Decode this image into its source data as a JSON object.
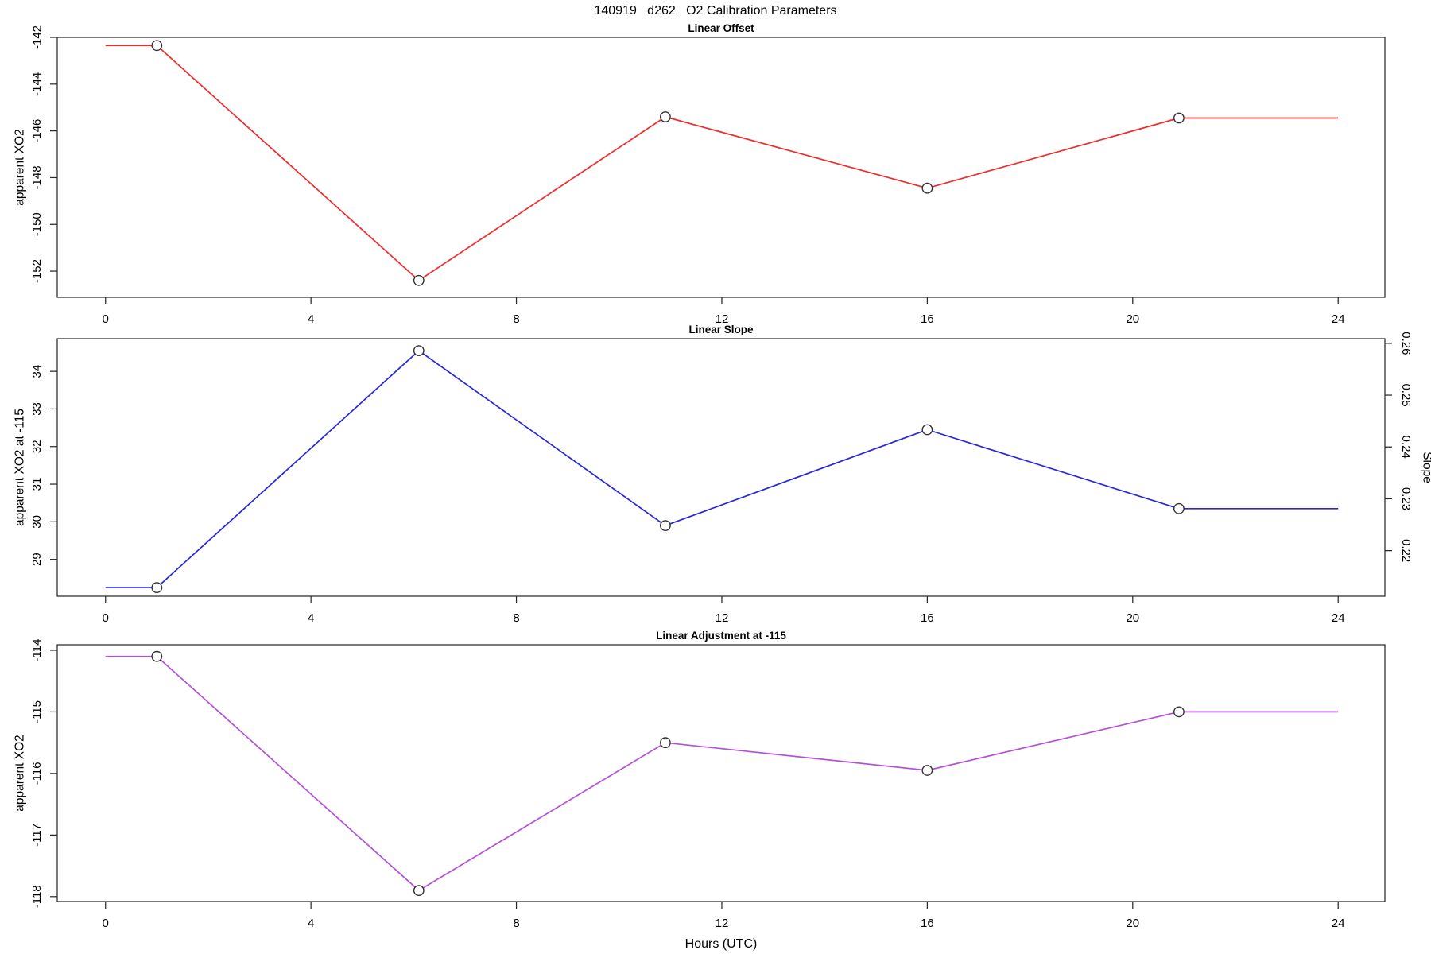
{
  "page": {
    "title": "140919   d262   O2 Calibration Parameters",
    "background": "#ffffff",
    "text_color": "#000000"
  },
  "x_axis": {
    "label": "Hours (UTC)",
    "tick_values": [
      0,
      4,
      8,
      12,
      16,
      20,
      24
    ],
    "tick_labels": [
      "0",
      "4",
      "8",
      "12",
      "16",
      "20",
      "24"
    ],
    "xlim": [
      -0.94,
      24.91
    ]
  },
  "chart_data": [
    {
      "type": "line",
      "title": "Linear Offset",
      "ylabel": "apparent XO2",
      "grid": false,
      "legend": null,
      "ytick_values": [
        -142,
        -144,
        -146,
        -148,
        -150,
        -152
      ],
      "ytick_labels": [
        "-142",
        "-144",
        "-146",
        "-148",
        "-150",
        "-152"
      ],
      "ylim": [
        -153.12,
        -142.0
      ],
      "series": [
        {
          "name": "linear_offset",
          "color": "#ee2c2c",
          "x": [
            0,
            1,
            6.1,
            10.9,
            16,
            20.9,
            24
          ],
          "y": [
            -142.35,
            -142.35,
            -152.4,
            -145.4,
            -148.45,
            -145.45,
            -145.45
          ],
          "marker_indices": [
            1,
            2,
            3,
            4,
            5
          ]
        }
      ]
    },
    {
      "type": "line",
      "title": "Linear Slope",
      "ylabel": "apparent XO2 at -115",
      "grid": false,
      "legend": null,
      "ytick_values": [
        29,
        30,
        31,
        32,
        33,
        34
      ],
      "ytick_labels": [
        "29",
        "30",
        "31",
        "32",
        "33",
        "34"
      ],
      "ylim": [
        28.02,
        34.87
      ],
      "right_axis": {
        "label": "Slope",
        "tick_values": [
          0.22,
          0.23,
          0.24,
          0.25,
          0.26
        ],
        "tick_labels": [
          "0.22",
          "0.23",
          "0.24",
          "0.25",
          "0.26"
        ],
        "ylim": [
          0.2112,
          0.2609
        ],
        "series_values": [
          0.213,
          0.213,
          0.259,
          0.2245,
          0.2435,
          0.228,
          0.228
        ]
      },
      "series": [
        {
          "name": "linear_slope",
          "color": "#2727dd",
          "x": [
            0,
            1,
            6.1,
            10.9,
            16,
            20.9,
            24
          ],
          "y": [
            28.25,
            28.25,
            34.55,
            29.9,
            32.45,
            30.35,
            30.35
          ],
          "marker_indices": [
            1,
            2,
            3,
            4,
            5
          ]
        }
      ]
    },
    {
      "type": "line",
      "title": "Linear Adjustment at -115",
      "ylabel": "apparent XO2",
      "grid": false,
      "legend": null,
      "ytick_values": [
        -114,
        -115,
        -116,
        -117,
        -118
      ],
      "ytick_labels": [
        "-114",
        "-115",
        "-116",
        "-117",
        "-118"
      ],
      "ylim": [
        -118.08,
        -113.91
      ],
      "series": [
        {
          "name": "linear_adjustment",
          "color": "#b551d8",
          "x": [
            0,
            1,
            6.1,
            10.9,
            16,
            20.9,
            24
          ],
          "y": [
            -114.1,
            -114.1,
            -117.9,
            -115.5,
            -115.95,
            -115.0,
            -115.0
          ],
          "marker_indices": [
            1,
            2,
            3,
            4,
            5
          ]
        }
      ]
    }
  ]
}
